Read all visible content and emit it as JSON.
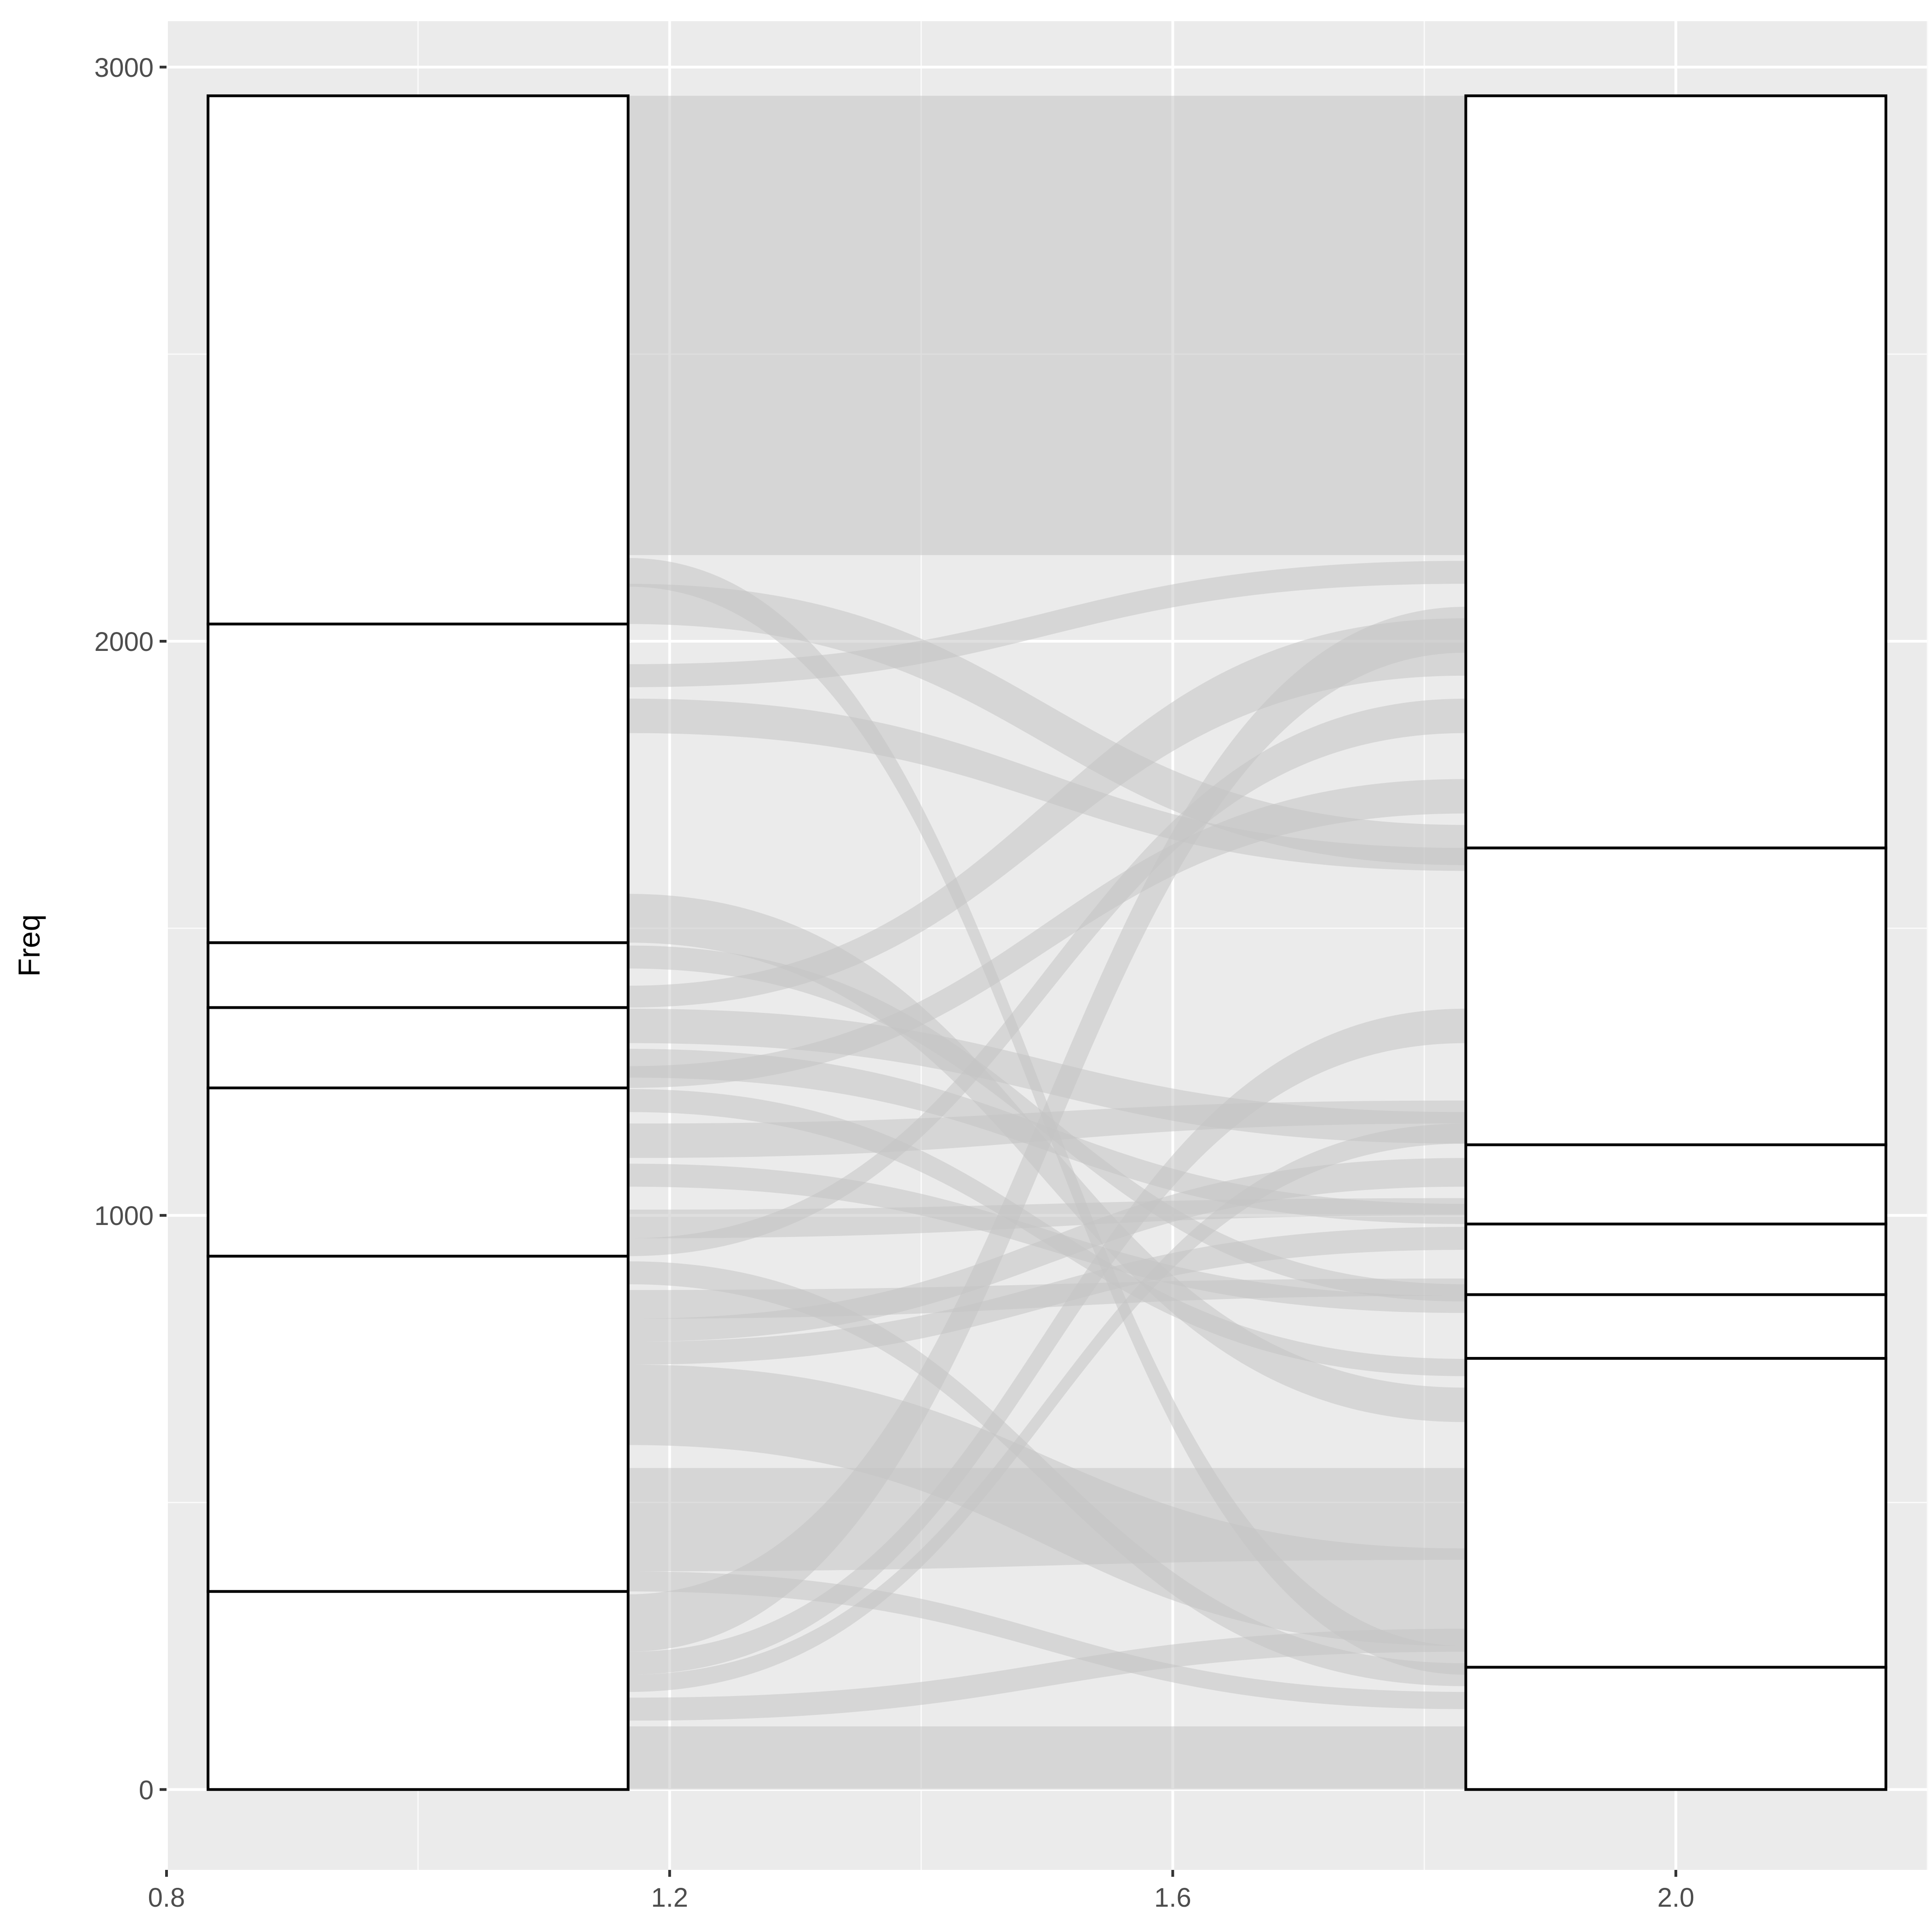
{
  "chart_data": {
    "type": "alluvial",
    "title": "",
    "xlabel": "",
    "ylabel": "Freq",
    "xlim": [
      0.8,
      2.2
    ],
    "ylim": [
      0,
      3000
    ],
    "x_ticks": [
      0.8,
      1.2,
      1.6,
      2.0
    ],
    "x_tick_labels": [
      "0.8",
      "1.2",
      "1.6",
      "2.0"
    ],
    "y_ticks": [
      0,
      1000,
      2000,
      3000
    ],
    "y_tick_labels": [
      "0",
      "1000",
      "2000",
      "3000"
    ],
    "grid": true,
    "legend": "none",
    "axes": [
      {
        "x": 1,
        "strata_boundaries": [
          0,
          345,
          929,
          1222,
          1362,
          1475,
          2030,
          2950
        ]
      },
      {
        "x": 2,
        "strata_boundaries": [
          0,
          213,
          751,
          862,
          985,
          1123,
          1640,
          2950
        ]
      }
    ],
    "flows": [
      {
        "left": [
          2150,
          2950
        ],
        "right": [
          2150,
          2950
        ]
      },
      {
        "left": [
          2030,
          2100
        ],
        "right": [
          1610,
          1680
        ]
      },
      {
        "left": [
          2095,
          2145
        ],
        "right": [
          200,
          250
        ]
      },
      {
        "left": [
          1920,
          1960
        ],
        "right": [
          2100,
          2140
        ]
      },
      {
        "left": [
          1840,
          1900
        ],
        "right": [
          1600,
          1640
        ]
      },
      {
        "left": [
          1475,
          1560
        ],
        "right": [
          640,
          700
        ]
      },
      {
        "left": [
          1430,
          1470
        ],
        "right": [
          850,
          880
        ]
      },
      {
        "left": [
          1362,
          1400
        ],
        "right": [
          1940,
          2040
        ]
      },
      {
        "left": [
          1300,
          1360
        ],
        "right": [
          1125,
          1180
        ]
      },
      {
        "left": [
          1240,
          1290
        ],
        "right": [
          985,
          1020
        ]
      },
      {
        "left": [
          1222,
          1260
        ],
        "right": [
          1700,
          1760
        ]
      },
      {
        "left": [
          1180,
          1220
        ],
        "right": [
          720,
          750
        ]
      },
      {
        "left": [
          1100,
          1160
        ],
        "right": [
          1160,
          1200
        ]
      },
      {
        "left": [
          1050,
          1090
        ],
        "right": [
          830,
          860
        ]
      },
      {
        "left": [
          960,
          1010
        ],
        "right": [
          1000,
          1030
        ]
      },
      {
        "left": [
          929,
          960
        ],
        "right": [
          1840,
          1900
        ]
      },
      {
        "left": [
          880,
          920
        ],
        "right": [
          180,
          220
        ]
      },
      {
        "left": [
          820,
          870
        ],
        "right": [
          860,
          890
        ]
      },
      {
        "left": [
          780,
          820
        ],
        "right": [
          1050,
          1100
        ]
      },
      {
        "left": [
          740,
          780
        ],
        "right": [
          940,
          980
        ]
      },
      {
        "left": [
          600,
          740
        ],
        "right": [
          250,
          420
        ]
      },
      {
        "left": [
          380,
          560
        ],
        "right": [
          400,
          560
        ]
      },
      {
        "left": [
          345,
          380
        ],
        "right": [
          140,
          170
        ]
      },
      {
        "left": [
          240,
          340
        ],
        "right": [
          1980,
          2060
        ]
      },
      {
        "left": [
          200,
          240
        ],
        "right": [
          1300,
          1360
        ]
      },
      {
        "left": [
          170,
          200
        ],
        "right": [
          1125,
          1160
        ]
      },
      {
        "left": [
          120,
          160
        ],
        "right": [
          240,
          280
        ]
      },
      {
        "left": [
          0,
          110
        ],
        "right": [
          0,
          110
        ]
      }
    ]
  }
}
